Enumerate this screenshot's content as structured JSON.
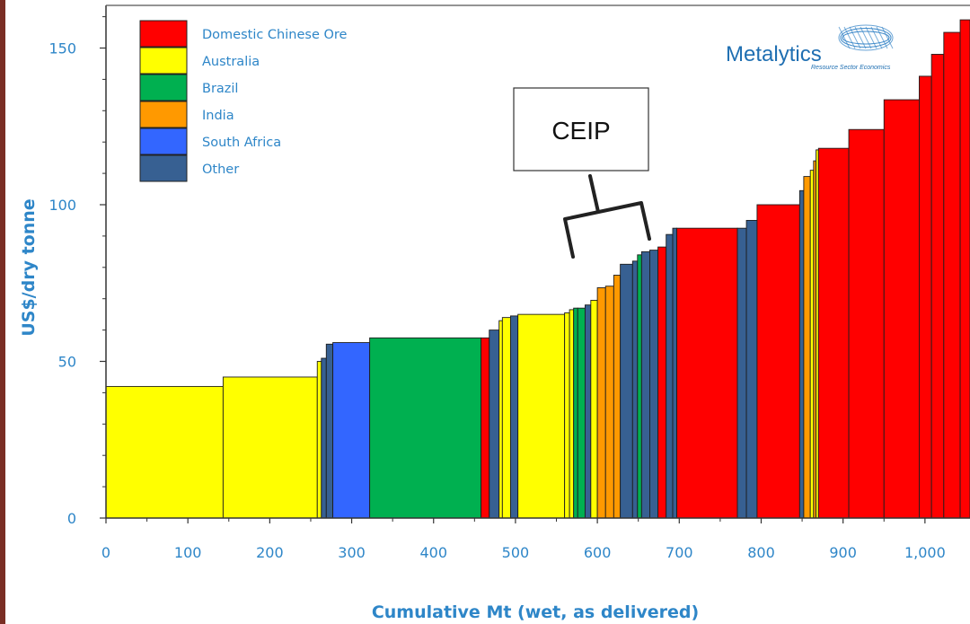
{
  "colors": {
    "Domestic Chinese Ore": "#ff0000",
    "Australia": "#ffff00",
    "Brazil": "#00b050",
    "India": "#ff9900",
    "South Africa": "#3366ff",
    "Other": "#376092"
  },
  "brand": {
    "name": "Metalytics",
    "tagline": "Resource Sector Economics",
    "icon": "globe-grid-icon"
  },
  "callout": {
    "label": "CEIP"
  },
  "chart_data": {
    "type": "bar",
    "subtype": "cost-curve",
    "title": "",
    "xlabel": "Cumulative Mt (wet, as delivered)",
    "ylabel": "US$/dry tonne",
    "xlim": [
      0,
      1055
    ],
    "ylim": [
      0,
      160
    ],
    "xticks": [
      0,
      100,
      200,
      300,
      400,
      500,
      600,
      700,
      800,
      900,
      1000
    ],
    "xtick_labels": [
      "0",
      "100",
      "200",
      "300",
      "400",
      "500",
      "600",
      "700",
      "800",
      "900",
      "1,000"
    ],
    "yticks": [
      0,
      50,
      100,
      150
    ],
    "ytick_labels": [
      "0",
      "50",
      "100",
      "150"
    ],
    "grid": false,
    "legend_position": "top-left",
    "legend": [
      "Domestic Chinese Ore",
      "Australia",
      "Brazil",
      "India",
      "South Africa",
      "Other"
    ],
    "segments": [
      {
        "x0": 0,
        "x1": 143,
        "value": 42,
        "category": "Australia"
      },
      {
        "x0": 143,
        "x1": 258,
        "value": 45,
        "category": "Australia"
      },
      {
        "x0": 258,
        "x1": 263,
        "value": 50,
        "category": "Australia"
      },
      {
        "x0": 263,
        "x1": 269,
        "value": 51,
        "category": "Other"
      },
      {
        "x0": 269,
        "x1": 277,
        "value": 55.5,
        "category": "Other"
      },
      {
        "x0": 277,
        "x1": 322,
        "value": 56,
        "category": "South Africa"
      },
      {
        "x0": 322,
        "x1": 458,
        "value": 57.5,
        "category": "Brazil"
      },
      {
        "x0": 458,
        "x1": 468,
        "value": 57.5,
        "category": "Domestic Chinese Ore"
      },
      {
        "x0": 468,
        "x1": 480,
        "value": 60,
        "category": "Other"
      },
      {
        "x0": 480,
        "x1": 484,
        "value": 63,
        "category": "Australia"
      },
      {
        "x0": 484,
        "x1": 494,
        "value": 64,
        "category": "Australia"
      },
      {
        "x0": 494,
        "x1": 503,
        "value": 64.5,
        "category": "Other"
      },
      {
        "x0": 503,
        "x1": 560,
        "value": 65,
        "category": "Australia"
      },
      {
        "x0": 560,
        "x1": 566,
        "value": 65.5,
        "category": "Australia"
      },
      {
        "x0": 566,
        "x1": 571,
        "value": 66.5,
        "category": "Australia"
      },
      {
        "x0": 571,
        "x1": 576,
        "value": 67,
        "category": "Brazil"
      },
      {
        "x0": 576,
        "x1": 585,
        "value": 67,
        "category": "Brazil"
      },
      {
        "x0": 585,
        "x1": 592,
        "value": 68,
        "category": "Other"
      },
      {
        "x0": 592,
        "x1": 600,
        "value": 69.5,
        "category": "Australia"
      },
      {
        "x0": 600,
        "x1": 610,
        "value": 73.5,
        "category": "India"
      },
      {
        "x0": 610,
        "x1": 620,
        "value": 74,
        "category": "India"
      },
      {
        "x0": 620,
        "x1": 628,
        "value": 77.5,
        "category": "India"
      },
      {
        "x0": 628,
        "x1": 643,
        "value": 81,
        "category": "Other"
      },
      {
        "x0": 643,
        "x1": 649,
        "value": 82,
        "category": "Other"
      },
      {
        "x0": 649,
        "x1": 654,
        "value": 84,
        "category": "Brazil"
      },
      {
        "x0": 654,
        "x1": 664,
        "value": 85,
        "category": "Other"
      },
      {
        "x0": 664,
        "x1": 674,
        "value": 85.5,
        "category": "Other"
      },
      {
        "x0": 674,
        "x1": 684,
        "value": 86.5,
        "category": "Domestic Chinese Ore"
      },
      {
        "x0": 684,
        "x1": 692,
        "value": 90.5,
        "category": "Other"
      },
      {
        "x0": 692,
        "x1": 697,
        "value": 92.5,
        "category": "Other"
      },
      {
        "x0": 697,
        "x1": 771,
        "value": 92.5,
        "category": "Domestic Chinese Ore"
      },
      {
        "x0": 771,
        "x1": 782,
        "value": 92.5,
        "category": "Other"
      },
      {
        "x0": 782,
        "x1": 795,
        "value": 95,
        "category": "Other"
      },
      {
        "x0": 795,
        "x1": 847,
        "value": 100,
        "category": "Domestic Chinese Ore"
      },
      {
        "x0": 847,
        "x1": 852,
        "value": 104.5,
        "category": "Other"
      },
      {
        "x0": 852,
        "x1": 860,
        "value": 109,
        "category": "India"
      },
      {
        "x0": 860,
        "x1": 864,
        "value": 111,
        "category": "Australia"
      },
      {
        "x0": 864,
        "x1": 867,
        "value": 114,
        "category": "India"
      },
      {
        "x0": 867,
        "x1": 870,
        "value": 117.5,
        "category": "Australia"
      },
      {
        "x0": 870,
        "x1": 907,
        "value": 118,
        "category": "Domestic Chinese Ore"
      },
      {
        "x0": 907,
        "x1": 950,
        "value": 124,
        "category": "Domestic Chinese Ore"
      },
      {
        "x0": 950,
        "x1": 993,
        "value": 133.5,
        "category": "Domestic Chinese Ore"
      },
      {
        "x0": 993,
        "x1": 1008,
        "value": 141,
        "category": "Domestic Chinese Ore"
      },
      {
        "x0": 1008,
        "x1": 1023,
        "value": 148,
        "category": "Domestic Chinese Ore"
      },
      {
        "x0": 1023,
        "x1": 1043,
        "value": 155,
        "category": "Domestic Chinese Ore"
      },
      {
        "x0": 1043,
        "x1": 1055,
        "value": 159,
        "category": "Domestic Chinese Ore"
      }
    ],
    "annotations": [
      {
        "text": "CEIP",
        "bracket_x": [
          570,
          669
        ]
      }
    ]
  }
}
